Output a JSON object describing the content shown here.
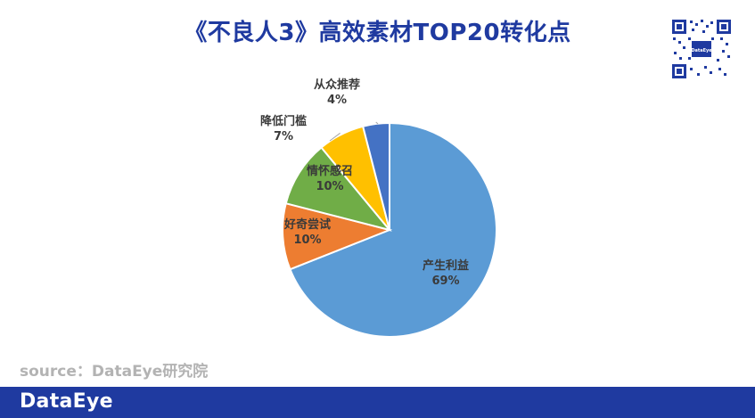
{
  "page": {
    "title": "《不良人3》高效素材TOP20转化点",
    "source": "source：DataEye研究院",
    "footer_brand": "DataEye",
    "qr_center_text": "DataEye"
  },
  "chart_data": {
    "type": "pie",
    "categories": [
      "产生利益",
      "好奇尝试",
      "情怀感召",
      "降低门槛",
      "从众推荐"
    ],
    "values": [
      69,
      10,
      10,
      7,
      4
    ],
    "value_labels": [
      "69%",
      "10%",
      "10%",
      "7%",
      "4%"
    ],
    "colors": [
      "#5b9bd5",
      "#ed7d31",
      "#70ad47",
      "#ffc000",
      "#4472c4"
    ],
    "start": "12 o'clock, clockwise",
    "legend": "none"
  }
}
